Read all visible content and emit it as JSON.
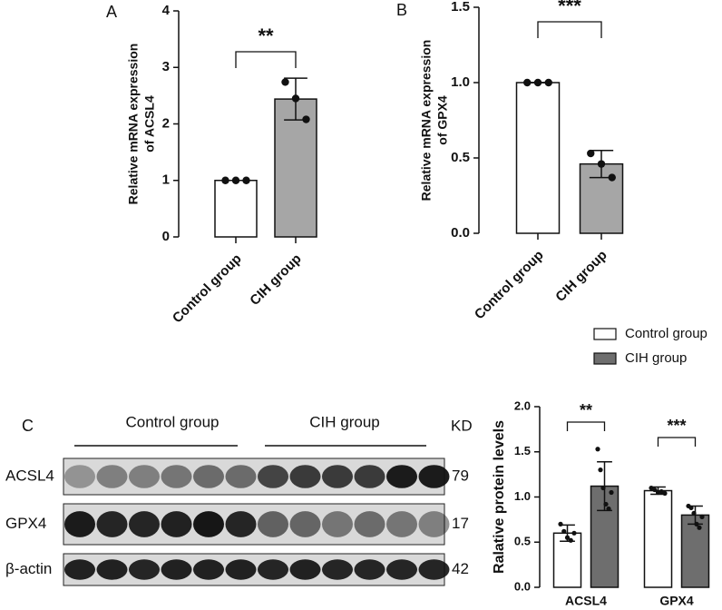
{
  "chart_data": [
    {
      "type": "bar",
      "panel_label": "A",
      "y_label": [
        "Relative mRNA expression",
        "of ACSL4"
      ],
      "categories": [
        "Control group",
        "CIH group"
      ],
      "series": [
        {
          "colors": [
            "#ffffff",
            "#a6a6a6"
          ],
          "values": [
            1.0,
            2.44
          ],
          "errors": [
            0.0,
            0.37
          ],
          "points": [
            [
              1.0,
              1.0,
              1.0
            ],
            [
              2.74,
              2.45,
              2.08
            ]
          ]
        }
      ],
      "ylim": [
        0,
        4
      ],
      "yticks": [
        0,
        1,
        2,
        3,
        4
      ],
      "significance": [
        "**"
      ]
    },
    {
      "type": "bar",
      "panel_label": "B",
      "y_label": [
        "Relative mRNA expression",
        "of GPX4"
      ],
      "categories": [
        "Control group",
        "CIH group"
      ],
      "series": [
        {
          "colors": [
            "#ffffff",
            "#a6a6a6"
          ],
          "values": [
            1.0,
            0.46
          ],
          "errors": [
            0.0,
            0.09
          ],
          "points": [
            [
              1.0,
              1.0,
              1.0
            ],
            [
              0.53,
              0.46,
              0.37
            ]
          ]
        }
      ],
      "ylim": [
        0,
        1.5
      ],
      "yticks": [
        {
          "value": 0,
          "label": "0.0"
        },
        {
          "value": 0.5,
          "label": "0.5"
        },
        {
          "value": 1.0,
          "label": "1.0"
        },
        {
          "value": 1.5,
          "label": "1.5"
        }
      ],
      "significance": [
        "***"
      ]
    },
    {
      "type": "grouped-bar",
      "y_label": [
        "Ralative protein levels"
      ],
      "categories": [
        "ACSL4",
        "GPX4"
      ],
      "series": [
        {
          "name": "Control group",
          "color": "#ffffff",
          "values": [
            0.6,
            1.07
          ],
          "errors": [
            0.09,
            0.04
          ],
          "points": [
            [
              0.7,
              0.62,
              0.55,
              0.52,
              0.6
            ],
            [
              1.1,
              1.08,
              1.05,
              1.06,
              1.04
            ]
          ]
        },
        {
          "name": "CIH group",
          "color": "#6e6e6e",
          "values": [
            1.12,
            0.8
          ],
          "errors": [
            0.27,
            0.1
          ],
          "points": [
            [
              1.53,
              1.3,
              1.1,
              0.92,
              0.87,
              1.05
            ],
            [
              0.9,
              0.88,
              0.82,
              0.7,
              0.66,
              0.78
            ]
          ]
        }
      ],
      "ylim": [
        0,
        2
      ],
      "yticks": [
        {
          "value": 0,
          "label": "0.0"
        },
        {
          "value": 0.5,
          "label": "0.5"
        },
        {
          "value": 1.0,
          "label": "1.0"
        },
        {
          "value": 1.5,
          "label": "1.5"
        },
        {
          "value": 2.0,
          "label": "2.0"
        }
      ],
      "significance": [
        "**",
        "***"
      ]
    }
  ],
  "blot": {
    "panel_label": "C",
    "groups": [
      "Control group",
      "CIH group"
    ],
    "unit": "KD",
    "rows": [
      {
        "label": "ACSL4",
        "kd": 79
      },
      {
        "label": "GPX4",
        "kd": 17
      },
      {
        "label": "β-actin",
        "kd": 42
      }
    ]
  }
}
